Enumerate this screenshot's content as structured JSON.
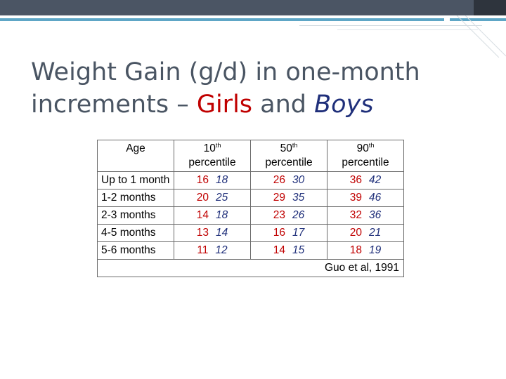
{
  "title": {
    "line1": "Weight Gain (g/d) in one-month",
    "line2_prefix": "increments – ",
    "girls": "Girls",
    "and": " and ",
    "boys": "Boys"
  },
  "table": {
    "headers": [
      {
        "label": "Age",
        "sup": "",
        "sub": ""
      },
      {
        "label": "10",
        "sup": "th",
        "sub": "percentile"
      },
      {
        "label": "50",
        "sup": "th",
        "sub": "percentile"
      },
      {
        "label": "90",
        "sup": "th",
        "sub": "percentile"
      }
    ],
    "rows": [
      {
        "age": "Up to 1 month",
        "p10": {
          "girls": "16",
          "boys": "18"
        },
        "p50": {
          "girls": "26",
          "boys": "30"
        },
        "p90": {
          "girls": "36",
          "boys": "42"
        }
      },
      {
        "age": "1-2 months",
        "p10": {
          "girls": "20",
          "boys": "25"
        },
        "p50": {
          "girls": "29",
          "boys": "35"
        },
        "p90": {
          "girls": "39",
          "boys": "46"
        }
      },
      {
        "age": "2-3 months",
        "p10": {
          "girls": "14",
          "boys": "18"
        },
        "p50": {
          "girls": "23",
          "boys": "26"
        },
        "p90": {
          "girls": "32",
          "boys": "36"
        }
      },
      {
        "age": "4-5 months",
        "p10": {
          "girls": "13",
          "boys": "14"
        },
        "p50": {
          "girls": "16",
          "boys": "17"
        },
        "p90": {
          "girls": "20",
          "boys": "21"
        }
      },
      {
        "age": "5-6 months",
        "p10": {
          "girls": "11",
          "boys": "12"
        },
        "p50": {
          "girls": "14",
          "boys": "15"
        },
        "p90": {
          "girls": "18",
          "boys": "19"
        }
      }
    ],
    "source": "Guo et al, 1991"
  },
  "colors": {
    "girls": "#c00000",
    "boys": "#1f2f7a",
    "title": "#4a5563",
    "accent": "#5ea6c6",
    "top_bar": "#4b5564"
  }
}
